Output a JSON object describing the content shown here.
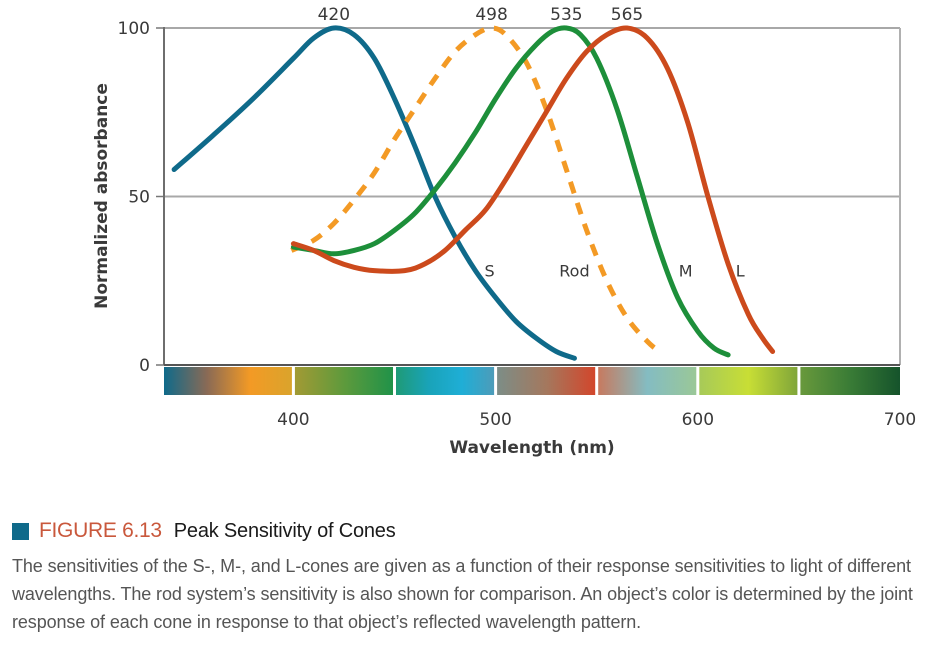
{
  "chart_data": {
    "type": "line",
    "title": "",
    "xlabel": "Wavelength (nm)",
    "ylabel": "Normalized absorbance",
    "xlim": [
      336,
      700
    ],
    "ylim": [
      0,
      100
    ],
    "x_ticks": [
      400,
      500,
      600,
      700
    ],
    "y_ticks": [
      0,
      50,
      100
    ],
    "grid": "horizontal",
    "legend": "inline-labels",
    "peak_labels": [
      {
        "text": "420",
        "x": 420
      },
      {
        "text": "498",
        "x": 498
      },
      {
        "text": "535",
        "x": 535
      },
      {
        "text": "565",
        "x": 565
      }
    ],
    "series": [
      {
        "name": "S",
        "label": "S",
        "peak": 420,
        "color": "#0f6a8a",
        "dashed": false,
        "label_at": [
          497,
          28
        ],
        "x": [
          341,
          360,
          380,
          400,
          410,
          420,
          430,
          440,
          450,
          460,
          470,
          480,
          490,
          500,
          510,
          520,
          530,
          539
        ],
        "y": [
          58,
          68,
          79,
          91,
          97,
          100,
          98,
          91,
          79,
          65,
          50,
          38,
          28,
          20,
          13,
          8,
          4,
          2
        ]
      },
      {
        "name": "Rod",
        "label": "Rod",
        "peak": 498,
        "color": "#f39a25",
        "dashed": true,
        "label_at": [
          539,
          28
        ],
        "x": [
          399,
          410,
          420,
          430,
          440,
          450,
          460,
          470,
          480,
          490,
          498,
          505,
          515,
          525,
          535,
          545,
          555,
          565,
          575,
          581
        ],
        "y": [
          34,
          37,
          42,
          49,
          57,
          67,
          76,
          85,
          93,
          98,
          100,
          98,
          90,
          76,
          58,
          40,
          25,
          14,
          7,
          4
        ]
      },
      {
        "name": "M",
        "label": "M",
        "peak": 535,
        "color": "#1d8f3a",
        "dashed": false,
        "label_at": [
          594,
          28
        ],
        "x": [
          400,
          410,
          420,
          430,
          440,
          450,
          460,
          470,
          480,
          490,
          500,
          510,
          520,
          528,
          535,
          542,
          550,
          560,
          570,
          580,
          590,
          600,
          608,
          615
        ],
        "y": [
          35,
          34,
          33,
          34,
          36,
          40,
          45,
          52,
          60,
          69,
          79,
          88,
          95,
          99,
          100,
          98,
          91,
          76,
          56,
          36,
          20,
          10,
          5,
          3
        ]
      },
      {
        "name": "L",
        "label": "L",
        "peak": 565,
        "color": "#cc4a1c",
        "dashed": false,
        "label_at": [
          621,
          28
        ],
        "x": [
          400,
          410,
          420,
          430,
          440,
          455,
          465,
          475,
          485,
          495,
          505,
          515,
          525,
          535,
          545,
          555,
          565,
          575,
          585,
          595,
          605,
          615,
          625,
          632,
          637
        ],
        "y": [
          36,
          34,
          31,
          29,
          28,
          28,
          30,
          34,
          40,
          46,
          55,
          65,
          75,
          85,
          93,
          98,
          100,
          97,
          88,
          72,
          50,
          30,
          15,
          8,
          4
        ]
      }
    ],
    "spectrum_bar": {
      "segments": [
        {
          "from": 336,
          "to": 400,
          "stops": [
            "#0f6a8a",
            "#8a6a55",
            "#f39a25",
            "#d9a42c"
          ]
        },
        {
          "from": 400,
          "to": 450,
          "stops": [
            "#a49a34",
            "#5e9a3c",
            "#1e9249"
          ]
        },
        {
          "from": 450,
          "to": 500,
          "stops": [
            "#1f9a73",
            "#19a3b8",
            "#1faed6",
            "#4f9bb8"
          ]
        },
        {
          "from": 500,
          "to": 550,
          "stops": [
            "#7b8e88",
            "#a4785e",
            "#d4452a"
          ]
        },
        {
          "from": 550,
          "to": 600,
          "stops": [
            "#c9785c",
            "#84bcc2",
            "#9bc896"
          ]
        },
        {
          "from": 600,
          "to": 650,
          "stops": [
            "#a6c95a",
            "#c8de35",
            "#7ea43a"
          ]
        },
        {
          "from": 650,
          "to": 700,
          "stops": [
            "#6a9a3c",
            "#3a7c36",
            "#15532b"
          ]
        }
      ]
    }
  },
  "caption": {
    "marker_color": "#0f6a8a",
    "figure_label": "FIGURE 6.13",
    "figure_label_color": "#c9583c",
    "title": "Peak Sensitivity of Cones",
    "body": "The sensitivities of the S-, M-, and L-cones are given as a function of their response sensitivities to light of different wavelengths. The rod system’s sensitivity is also shown for comparison. An object’s color is determined by the joint response of each cone in response to that object’s reflected wavelength pattern."
  }
}
